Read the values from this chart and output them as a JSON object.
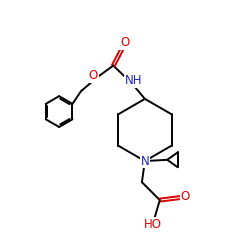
{
  "bg_color": "#ffffff",
  "atom_colors": {
    "C": "#000000",
    "N": "#2222cc",
    "O": "#dd0000"
  },
  "bond_lw": 1.4,
  "font_size": 8.5,
  "fig_size": [
    2.5,
    2.5
  ],
  "dpi": 100,
  "xlim": [
    0.0,
    10.0
  ],
  "ylim": [
    0.5,
    10.5
  ]
}
